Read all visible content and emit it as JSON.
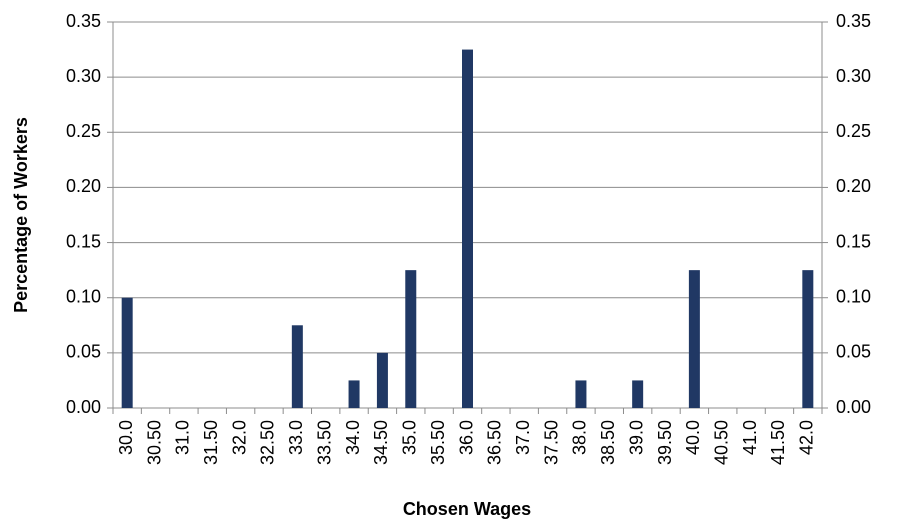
{
  "chart_data": {
    "type": "bar",
    "x_label": "Chosen Wages",
    "y_label": "Percentage of Workers",
    "categories": [
      "30.0",
      "30.50",
      "31.0",
      "31.50",
      "32.0",
      "32.50",
      "33.0",
      "33.50",
      "34.0",
      "34.50",
      "35.0",
      "35.50",
      "36.0",
      "36.50",
      "37.0",
      "37.50",
      "38.0",
      "38.50",
      "39.0",
      "39.50",
      "40.0",
      "40.50",
      "41.0",
      "41.50",
      "42.0"
    ],
    "values": [
      0.1,
      0,
      0,
      0,
      0,
      0,
      0.075,
      0,
      0.025,
      0.05,
      0.125,
      0,
      0.325,
      0,
      0,
      0,
      0.025,
      0,
      0.025,
      0,
      0.125,
      0,
      0,
      0,
      0.125
    ],
    "color": "#203864",
    "ylim": [
      0,
      0.35
    ],
    "yticks": [
      {
        "value": 0,
        "label": "0.00"
      },
      {
        "value": 0.05,
        "label": "0.05"
      },
      {
        "value": 0.1,
        "label": "0.10"
      },
      {
        "value": 0.15,
        "label": "0.15"
      },
      {
        "value": 0.2,
        "label": "0.20"
      },
      {
        "value": 0.25,
        "label": "0.25"
      },
      {
        "value": 0.3,
        "label": "0.30"
      },
      {
        "value": 0.35,
        "label": "0.35"
      }
    ],
    "y2lim": [
      0,
      0.35
    ],
    "y2ticks": [
      {
        "value": 0,
        "label": "0.00"
      },
      {
        "value": 0.05,
        "label": "0.05"
      },
      {
        "value": 0.1,
        "label": "0.10"
      },
      {
        "value": 0.15,
        "label": "0.15"
      },
      {
        "value": 0.2,
        "label": "0.20"
      },
      {
        "value": 0.25,
        "label": "0.25"
      },
      {
        "value": 0.3,
        "label": "0.30"
      },
      {
        "value": 0.35,
        "label": "0.35"
      }
    ],
    "grid": true
  }
}
